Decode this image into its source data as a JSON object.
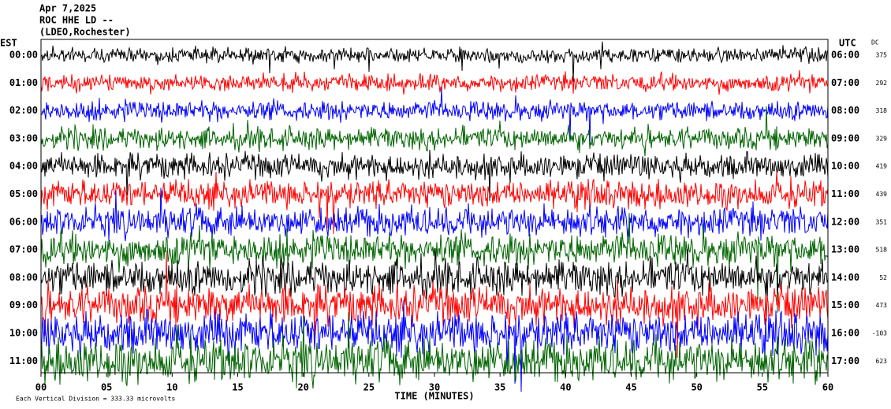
{
  "header": {
    "lines": [
      "Apr 7,2025",
      "ROC HHE LD --",
      "(LDEO,Rochester)"
    ]
  },
  "left_axis": {
    "label": "EST",
    "ticks": [
      "00:00",
      "01:00",
      "02:00",
      "03:00",
      "04:00",
      "05:00",
      "06:00",
      "07:00",
      "08:00",
      "09:00",
      "10:00",
      "11:00"
    ]
  },
  "right_axis": {
    "label": "UTC",
    "ticks": [
      "06:00",
      "07:00",
      "08:00",
      "09:00",
      "10:00",
      "11:00",
      "12:00",
      "13:00",
      "14:00",
      "15:00",
      "16:00",
      "17:00"
    ]
  },
  "dc": {
    "label": "DC",
    "values": [
      375,
      292,
      318,
      329,
      419,
      439,
      351,
      518,
      52,
      473,
      -103,
      623
    ]
  },
  "x_axis": {
    "label": "TIME (MINUTES)",
    "ticks": [
      "00",
      "05",
      "10",
      "15",
      "20",
      "25",
      "30",
      "35",
      "40",
      "45",
      "50",
      "55",
      "60"
    ]
  },
  "footer": "Each Vertical Division =  333.33 microvolts"
}
